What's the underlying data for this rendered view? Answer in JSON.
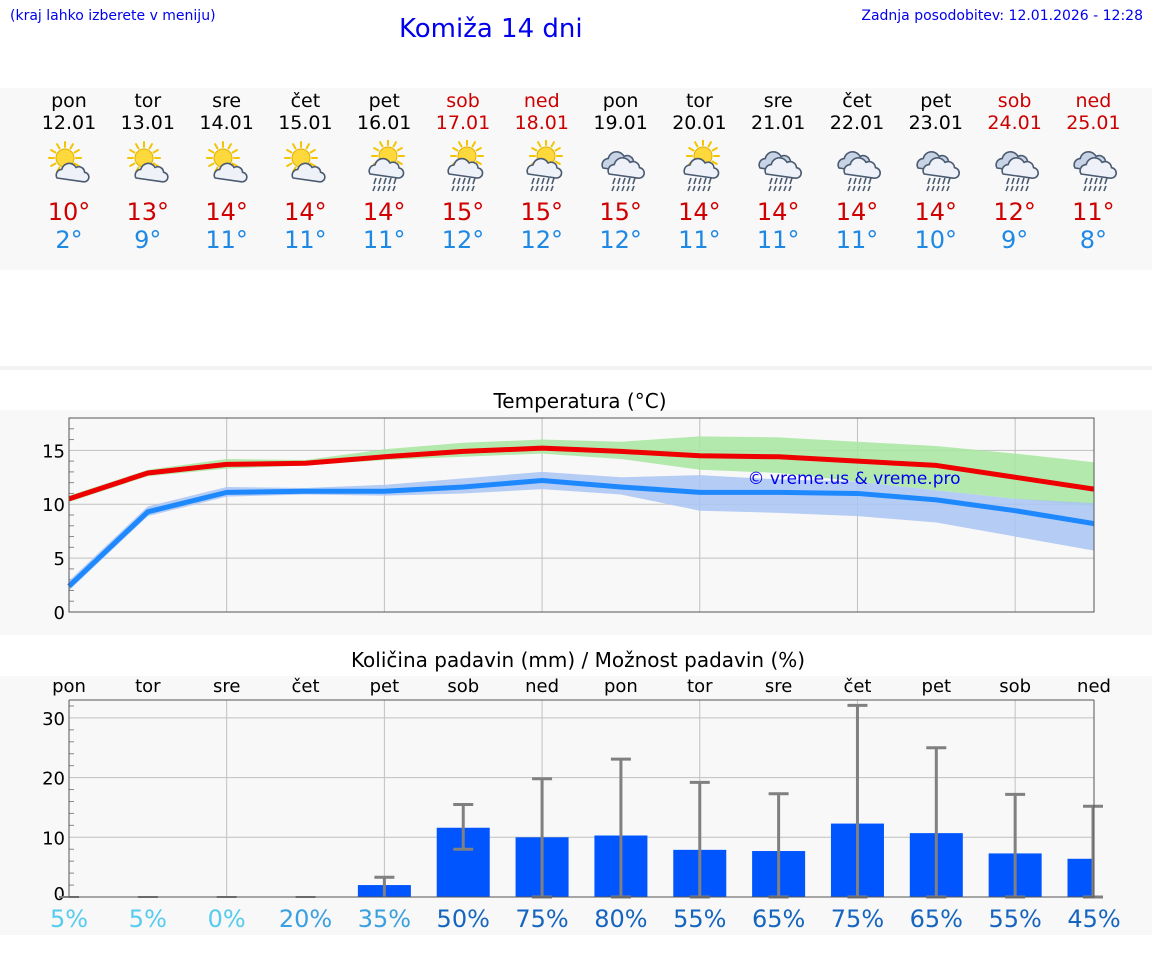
{
  "header": {
    "hint": "(kraj lahko izberete v meniju)",
    "title": "Komiža 14 dni",
    "updated": "Zadnja posodobitev: 12.01.2026 - 12:28"
  },
  "days": [
    {
      "name": "pon",
      "date": "12.01",
      "weekend": false,
      "icon": "sun-cloud-icon",
      "max": "10°",
      "min": "2°"
    },
    {
      "name": "tor",
      "date": "13.01",
      "weekend": false,
      "icon": "sun-cloud-icon",
      "max": "13°",
      "min": "9°"
    },
    {
      "name": "sre",
      "date": "14.01",
      "weekend": false,
      "icon": "sun-cloud-icon",
      "max": "14°",
      "min": "11°"
    },
    {
      "name": "čet",
      "date": "15.01",
      "weekend": false,
      "icon": "sun-cloud-icon",
      "max": "14°",
      "min": "11°"
    },
    {
      "name": "pet",
      "date": "16.01",
      "weekend": false,
      "icon": "sun-rain-icon",
      "max": "14°",
      "min": "11°"
    },
    {
      "name": "sob",
      "date": "17.01",
      "weekend": true,
      "icon": "sun-rain-icon",
      "max": "15°",
      "min": "12°"
    },
    {
      "name": "ned",
      "date": "18.01",
      "weekend": true,
      "icon": "sun-rain-icon",
      "max": "15°",
      "min": "12°"
    },
    {
      "name": "pon",
      "date": "19.01",
      "weekend": false,
      "icon": "cloud-rain-icon",
      "max": "15°",
      "min": "12°"
    },
    {
      "name": "tor",
      "date": "20.01",
      "weekend": false,
      "icon": "sun-rain-icon",
      "max": "14°",
      "min": "11°"
    },
    {
      "name": "sre",
      "date": "21.01",
      "weekend": false,
      "icon": "cloud-rain-icon",
      "max": "14°",
      "min": "11°"
    },
    {
      "name": "čet",
      "date": "22.01",
      "weekend": false,
      "icon": "cloud-rain-icon",
      "max": "14°",
      "min": "11°"
    },
    {
      "name": "pet",
      "date": "23.01",
      "weekend": false,
      "icon": "cloud-rain-icon",
      "max": "14°",
      "min": "10°"
    },
    {
      "name": "sob",
      "date": "24.01",
      "weekend": true,
      "icon": "cloud-rain-icon",
      "max": "12°",
      "min": "9°"
    },
    {
      "name": "ned",
      "date": "25.01",
      "weekend": true,
      "icon": "cloud-rain-icon",
      "max": "11°",
      "min": "8°"
    }
  ],
  "colors": {
    "max_line": "#ee0000",
    "min_line": "#1e88ff",
    "max_band": "#a8e6a0",
    "min_band": "#a9c4f5",
    "bar": "#0055ff",
    "whisker": "#808080",
    "grid": "#c0c0c0"
  },
  "chart_data": [
    {
      "type": "line",
      "title": "Temperatura (°C)",
      "ylim": [
        0,
        18
      ],
      "yticks": [
        0,
        5,
        10,
        15
      ],
      "watermark": "© vreme.us & vreme.pro",
      "x": [
        0,
        1,
        2,
        3,
        4,
        5,
        6,
        7,
        8,
        9,
        10,
        11,
        12,
        13
      ],
      "series": [
        {
          "name": "max",
          "values": [
            10.5,
            12.9,
            13.7,
            13.8,
            14.4,
            14.9,
            15.2,
            14.9,
            14.5,
            14.4,
            14.0,
            13.6,
            12.5,
            11.4
          ],
          "band_low": [
            10.2,
            12.6,
            13.3,
            13.6,
            14.1,
            14.4,
            14.7,
            14.2,
            13.2,
            12.9,
            12.1,
            11.3,
            10.5,
            9.8
          ],
          "band_high": [
            10.8,
            13.2,
            14.2,
            14.1,
            15.1,
            15.7,
            16.0,
            15.8,
            16.3,
            16.2,
            15.8,
            15.4,
            14.7,
            13.9
          ]
        },
        {
          "name": "min",
          "values": [
            2.4,
            9.3,
            11.1,
            11.2,
            11.2,
            11.6,
            12.2,
            11.6,
            11.1,
            11.1,
            11.0,
            10.4,
            9.4,
            8.2
          ],
          "band_low": [
            2.0,
            8.9,
            10.7,
            10.9,
            10.8,
            11.0,
            11.4,
            10.9,
            9.4,
            9.2,
            8.9,
            8.3,
            7.0,
            5.7
          ],
          "band_high": [
            2.9,
            9.8,
            11.6,
            11.5,
            11.8,
            12.4,
            13.0,
            12.5,
            12.7,
            12.3,
            12.1,
            11.3,
            10.5,
            10.1
          ]
        }
      ]
    },
    {
      "type": "bar",
      "title": "Količina padavin (mm) / Možnost padavin (%)",
      "ylim": [
        0,
        33
      ],
      "yticks": [
        0,
        10,
        20,
        30
      ],
      "categories": [
        "pon",
        "tor",
        "sre",
        "čet",
        "pet",
        "sob",
        "ned",
        "pon",
        "tor",
        "sre",
        "čet",
        "pet",
        "sob",
        "ned"
      ],
      "values": [
        0,
        0,
        0,
        0,
        2,
        11.6,
        10,
        10.3,
        7.9,
        7.7,
        12.3,
        10.7,
        7.3,
        6.4
      ],
      "whisker_low": [
        0,
        0,
        0,
        0,
        0,
        8,
        0,
        0,
        0,
        0,
        0,
        0,
        0,
        0
      ],
      "whisker_high": [
        0,
        0,
        0,
        0,
        3.3,
        15.5,
        19.8,
        23.1,
        19.2,
        17.3,
        32.1,
        25,
        17.2,
        15.2
      ],
      "probability": [
        "5%",
        "5%",
        "0%",
        "20%",
        "35%",
        "50%",
        "75%",
        "80%",
        "55%",
        "65%",
        "75%",
        "65%",
        "55%",
        "45%"
      ],
      "probability_colors": [
        "#55ccee",
        "#55ccee",
        "#55ccee",
        "#3aa0e0",
        "#3aa0e0",
        "#1565c0",
        "#1565c0",
        "#1565c0",
        "#1565c0",
        "#1565c0",
        "#1565c0",
        "#1565c0",
        "#1565c0",
        "#1565c0"
      ]
    }
  ]
}
